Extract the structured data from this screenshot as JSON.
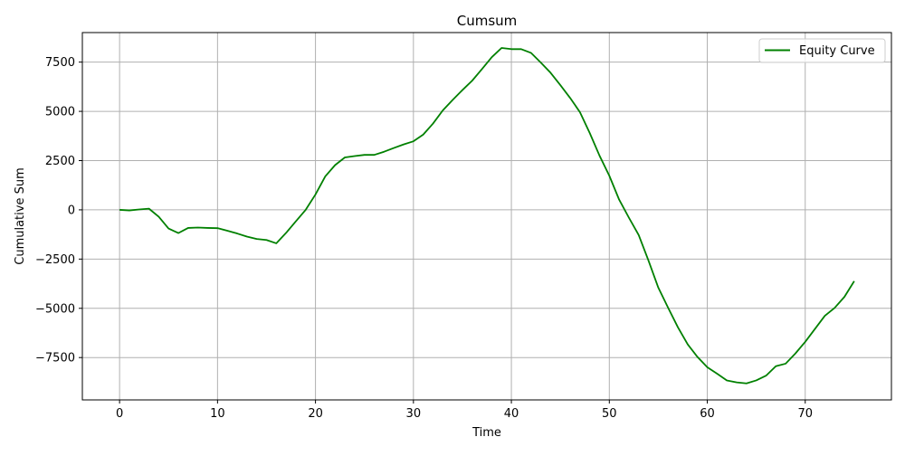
{
  "chart_data": {
    "type": "line",
    "title": "Cumsum",
    "xlabel": "Time",
    "ylabel": "Cumulative Sum",
    "xlim": [
      -3.8,
      78.8
    ],
    "ylim": [
      -9650,
      9000
    ],
    "xticks": [
      0,
      10,
      20,
      30,
      40,
      50,
      60,
      70
    ],
    "xtick_labels": [
      "0",
      "10",
      "20",
      "30",
      "40",
      "50",
      "60",
      "70"
    ],
    "yticks": [
      -7500,
      -5000,
      -2500,
      0,
      2500,
      5000,
      7500
    ],
    "ytick_labels": [
      "−7500",
      "−5000",
      "−2500",
      "0",
      "2500",
      "5000",
      "7500"
    ],
    "grid": true,
    "legend_position": "top-right",
    "series": [
      {
        "name": "Equity Curve",
        "color": "#008000",
        "x": [
          0,
          1,
          2,
          3,
          4,
          5,
          6,
          7,
          8,
          9,
          10,
          11,
          12,
          13,
          14,
          15,
          16,
          17,
          18,
          19,
          20,
          21,
          22,
          23,
          24,
          25,
          26,
          27,
          28,
          29,
          30,
          31,
          32,
          33,
          34,
          35,
          36,
          37,
          38,
          39,
          40,
          41,
          42,
          43,
          44,
          45,
          46,
          47,
          48,
          49,
          50,
          51,
          52,
          53,
          54,
          55,
          56,
          57,
          58,
          59,
          60,
          61,
          62,
          63,
          64,
          65,
          66,
          67,
          68,
          69,
          70,
          71,
          72,
          73,
          74,
          75
        ],
        "y": [
          0,
          -30,
          20,
          60,
          -350,
          -950,
          -1180,
          -920,
          -900,
          -920,
          -930,
          -1060,
          -1200,
          -1360,
          -1480,
          -1530,
          -1700,
          -1170,
          -580,
          0,
          780,
          1700,
          2270,
          2660,
          2730,
          2790,
          2790,
          2950,
          3140,
          3320,
          3480,
          3820,
          4380,
          5050,
          5580,
          6080,
          6560,
          7150,
          7750,
          8220,
          8160,
          8160,
          7970,
          7480,
          6960,
          6330,
          5680,
          4960,
          3900,
          2750,
          1730,
          520,
          -400,
          -1280,
          -2580,
          -3950,
          -4970,
          -5960,
          -6830,
          -7470,
          -7990,
          -8320,
          -8660,
          -8760,
          -8810,
          -8660,
          -8420,
          -7940,
          -7810,
          -7290,
          -6700,
          -6040,
          -5380,
          -4980,
          -4420,
          -3620
        ]
      }
    ]
  }
}
